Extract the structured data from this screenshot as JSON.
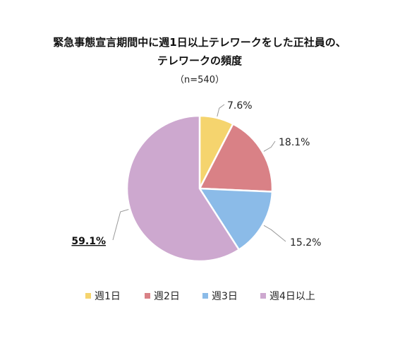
{
  "chart_data": {
    "type": "pie",
    "title_line1": "緊急事態宣言期間中に週1日以上テレワークをした正社員の、",
    "title_line2": "テレワークの頻度",
    "subtitle": "（n=540）",
    "slices": [
      {
        "name": "週1日",
        "value": 7.6,
        "label": "7.6%",
        "color": "#f5d46e"
      },
      {
        "name": "週2日",
        "value": 18.1,
        "label": "18.1%",
        "color": "#d98186"
      },
      {
        "name": "週3日",
        "value": 15.2,
        "label": "15.2%",
        "color": "#8bbbe8"
      },
      {
        "name": "週4日以上",
        "value": 59.1,
        "label": "59.1%",
        "color": "#cda8cf",
        "emphasis": true
      }
    ],
    "legend_position": "bottom"
  }
}
